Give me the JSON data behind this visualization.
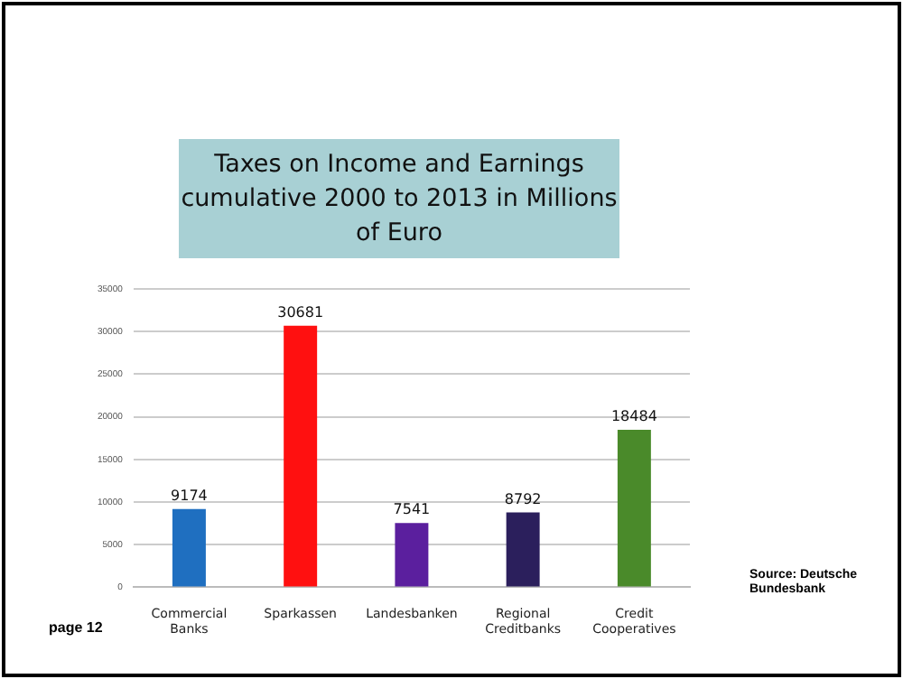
{
  "chart_data": {
    "type": "bar",
    "title": "Taxes on Income and Earnings cumulative 2000 to 2013 in Millions of Euro",
    "categories": [
      "Commercial Banks",
      "Sparkassen",
      "Landesbanken",
      "Regional Creditbanks",
      "Credit Cooperatives"
    ],
    "values": [
      9174,
      30681,
      7541,
      8792,
      18484
    ],
    "colors": [
      "#1f6fc0",
      "#ff1010",
      "#5b1f9e",
      "#2b1f5c",
      "#4a8a2a"
    ],
    "ylim": [
      0,
      35000
    ],
    "yticks": [
      0,
      5000,
      10000,
      15000,
      20000,
      25000,
      30000,
      35000
    ],
    "grid": "y",
    "legend": false,
    "data_labels": true,
    "annotations": [
      "Source: Deutsche Bundesbank",
      "page 12"
    ]
  }
}
